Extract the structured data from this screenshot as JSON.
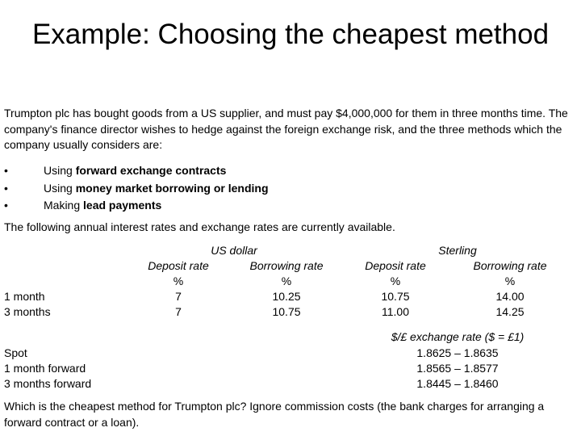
{
  "header": {
    "title": "Example: Choosing the cheapest method"
  },
  "intro": "Trumpton plc has bought goods from a US supplier, and must pay $4,000,000 for them in three months time. The company's finance director wishes to hedge against the foreign exchange risk, and the three methods which the company usually considers are:",
  "bullets": [
    {
      "prefix": "Using",
      "bold": "forward exchange contracts"
    },
    {
      "prefix": "Using",
      "bold": "money market borrowing or lending"
    },
    {
      "prefix": "Making",
      "bold": "lead payments"
    }
  ],
  "rates_intro": "The following annual interest rates and exchange rates are currently available.",
  "table": {
    "groups": [
      "US dollar",
      "Sterling"
    ],
    "columns": [
      "Deposit rate",
      "Borrowing rate",
      "Deposit rate",
      "Borrowing rate"
    ],
    "units": [
      "%",
      "%",
      "%",
      "%"
    ],
    "rows": [
      [
        "1 month",
        "7",
        "10.25",
        "10.75",
        "14.00"
      ],
      [
        "3 months",
        "7",
        "10.75",
        "11.00",
        "14.25"
      ]
    ]
  },
  "exchange": {
    "heading": "$/£ exchange rate ($ = £1)",
    "rows": [
      [
        "Spot",
        "1.8625 – 1.8635"
      ],
      [
        "1 month forward",
        "1.8565 – 1.8577"
      ],
      [
        "3 months forward",
        "1.8445 – 1.8460"
      ]
    ]
  },
  "question": "Which is the cheapest method for Trumpton plc? Ignore commission costs (the bank charges for arranging a forward contract or a loan)."
}
